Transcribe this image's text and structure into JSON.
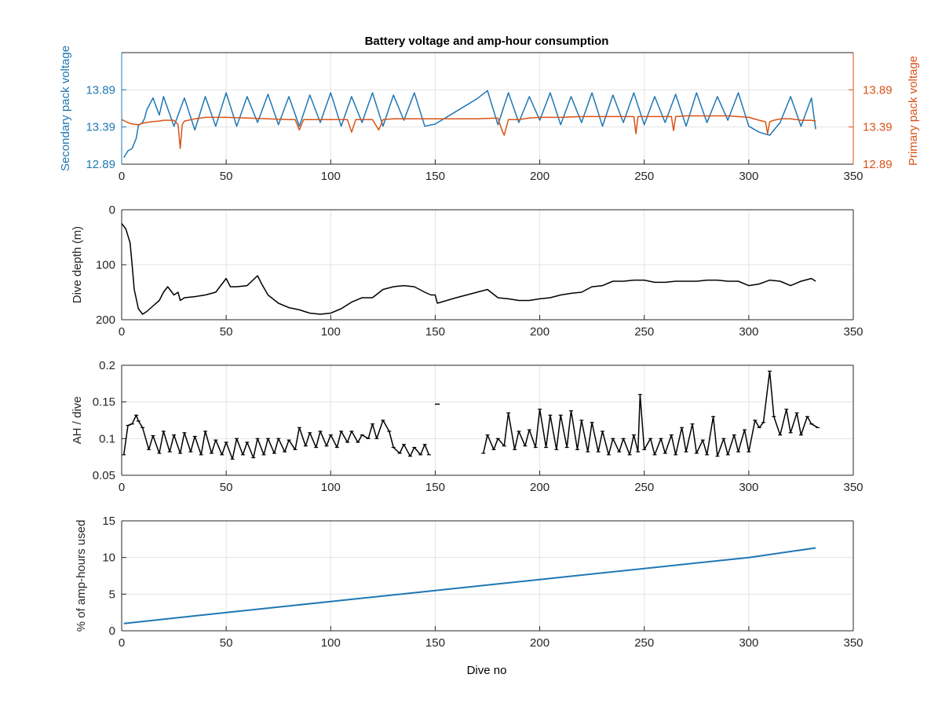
{
  "figure": {
    "title": "Battery voltage and amp-hour consumption",
    "xlabel": "Dive no"
  },
  "colors": {
    "secondary": "#1f77b4",
    "primary": "#d95319",
    "black": "#000000",
    "grid": "#e3e3e3"
  },
  "chart_data": [
    {
      "type": "line",
      "title": "Battery voltage and amp-hour consumption",
      "xlabel": "",
      "ylabel": "Secondary pack voltage",
      "ylabel_right": "Primary pack voltage",
      "xlim": [
        0,
        350
      ],
      "ylim": [
        12.89,
        14.39
      ],
      "ylim_right": [
        12.89,
        14.39
      ],
      "xticks": [
        "0",
        "50",
        "100",
        "150",
        "200",
        "250",
        "300",
        "350"
      ],
      "yticks": [
        "12.89",
        "13.39",
        "13.89"
      ],
      "yticks_right": [
        "12.89",
        "13.39",
        "13.89"
      ],
      "grid": true,
      "series": [
        {
          "axis": "left",
          "color": "#1f77b4",
          "x": [
            1,
            3,
            5,
            7,
            8,
            10,
            11,
            12,
            15,
            18,
            20,
            25,
            30,
            35,
            40,
            45,
            50,
            55,
            60,
            65,
            70,
            75,
            80,
            85,
            90,
            95,
            100,
            105,
            110,
            115,
            120,
            125,
            130,
            135,
            140,
            145,
            150,
            160,
            170,
            175,
            180,
            185,
            190,
            195,
            200,
            205,
            210,
            215,
            220,
            225,
            230,
            235,
            240,
            245,
            250,
            255,
            260,
            265,
            270,
            275,
            280,
            285,
            290,
            295,
            300,
            305,
            310,
            315,
            320,
            325,
            330,
            332
          ],
          "y": [
            12.98,
            13.07,
            13.1,
            13.24,
            13.41,
            13.45,
            13.51,
            13.62,
            13.78,
            13.55,
            13.8,
            13.4,
            13.78,
            13.35,
            13.8,
            13.4,
            13.85,
            13.4,
            13.8,
            13.45,
            13.83,
            13.42,
            13.8,
            13.4,
            13.82,
            13.45,
            13.85,
            13.4,
            13.8,
            13.45,
            13.85,
            13.4,
            13.82,
            13.48,
            13.85,
            13.4,
            13.43,
            13.6,
            13.77,
            13.88,
            13.42,
            13.85,
            13.45,
            13.8,
            13.48,
            13.85,
            13.42,
            13.8,
            13.45,
            13.85,
            13.4,
            13.82,
            13.45,
            13.85,
            13.42,
            13.8,
            13.45,
            13.83,
            13.4,
            13.85,
            13.45,
            13.8,
            13.48,
            13.85,
            13.4,
            13.32,
            13.28,
            13.45,
            13.8,
            13.4,
            13.78,
            13.36
          ]
        },
        {
          "axis": "right",
          "color": "#d95319",
          "x": [
            0,
            3,
            5,
            8,
            10,
            14,
            18,
            20,
            25,
            27,
            28,
            29,
            30,
            35,
            40,
            45,
            50,
            60,
            70,
            80,
            83,
            85,
            87,
            90,
            100,
            108,
            110,
            112,
            120,
            123,
            125,
            130,
            140,
            150,
            160,
            170,
            180,
            182,
            183,
            185,
            190,
            195,
            200,
            210,
            220,
            230,
            240,
            245,
            246,
            247,
            248,
            250,
            260,
            263,
            264,
            265,
            270,
            280,
            290,
            300,
            305,
            308,
            309,
            310,
            312,
            315,
            320,
            325,
            330,
            332
          ],
          "y": [
            13.49,
            13.45,
            13.43,
            13.42,
            13.44,
            13.46,
            13.47,
            13.48,
            13.48,
            13.42,
            13.1,
            13.42,
            13.47,
            13.5,
            13.52,
            13.52,
            13.52,
            13.51,
            13.5,
            13.49,
            13.49,
            13.35,
            13.49,
            13.49,
            13.49,
            13.49,
            13.32,
            13.49,
            13.49,
            13.35,
            13.49,
            13.5,
            13.5,
            13.5,
            13.5,
            13.5,
            13.51,
            13.34,
            13.28,
            13.49,
            13.49,
            13.51,
            13.52,
            13.52,
            13.53,
            13.53,
            13.53,
            13.53,
            13.3,
            13.53,
            13.53,
            13.53,
            13.53,
            13.53,
            13.34,
            13.53,
            13.54,
            13.54,
            13.54,
            13.52,
            13.48,
            13.46,
            13.3,
            13.46,
            13.48,
            13.5,
            13.5,
            13.48,
            13.48,
            13.47
          ]
        }
      ]
    },
    {
      "type": "line",
      "ylabel": "Dive depth (m)",
      "y_reversed": true,
      "xlim": [
        0,
        350
      ],
      "ylim": [
        0,
        200
      ],
      "xticks": [
        "0",
        "50",
        "100",
        "150",
        "200",
        "250",
        "300",
        "350"
      ],
      "yticks": [
        "0",
        "100",
        "200"
      ],
      "grid": true,
      "series": [
        {
          "color": "#000000",
          "x": [
            0,
            2,
            4,
            5,
            6,
            8,
            10,
            12,
            15,
            18,
            20,
            22,
            25,
            27,
            28,
            30,
            35,
            40,
            45,
            50,
            52,
            55,
            60,
            65,
            67,
            70,
            75,
            80,
            85,
            90,
            95,
            100,
            105,
            110,
            115,
            120,
            125,
            130,
            135,
            140,
            145,
            148,
            150,
            151,
            160,
            170,
            175,
            180,
            185,
            190,
            195,
            200,
            205,
            210,
            215,
            220,
            225,
            230,
            235,
            240,
            245,
            250,
            255,
            260,
            265,
            270,
            275,
            280,
            285,
            290,
            295,
            300,
            305,
            310,
            315,
            320,
            325,
            330,
            332
          ],
          "y": [
            25,
            35,
            60,
            100,
            145,
            180,
            190,
            185,
            175,
            165,
            150,
            140,
            155,
            150,
            165,
            160,
            158,
            155,
            150,
            125,
            140,
            140,
            138,
            120,
            135,
            155,
            170,
            178,
            182,
            188,
            190,
            188,
            180,
            168,
            160,
            160,
            145,
            140,
            138,
            140,
            150,
            155,
            155,
            170,
            160,
            150,
            145,
            160,
            162,
            165,
            165,
            162,
            160,
            155,
            152,
            150,
            140,
            138,
            130,
            130,
            128,
            128,
            132,
            132,
            130,
            130,
            130,
            128,
            128,
            130,
            130,
            138,
            135,
            128,
            130,
            138,
            130,
            125,
            130
          ]
        }
      ]
    },
    {
      "type": "line",
      "ylabel": "AH / dive",
      "xlim": [
        0,
        350
      ],
      "ylim": [
        0.05,
        0.2
      ],
      "xticks": [
        "0",
        "50",
        "100",
        "150",
        "200",
        "250",
        "300",
        "350"
      ],
      "yticks": [
        "0.05",
        "0.1",
        "0.15",
        "0.2"
      ],
      "grid": true,
      "series": [
        {
          "color": "#000000",
          "x": [
            1,
            3,
            5,
            7,
            8,
            10,
            13,
            15,
            18,
            20,
            23,
            25,
            28,
            30,
            33,
            35,
            38,
            40,
            43,
            45,
            48,
            50,
            53,
            55,
            58,
            60,
            63,
            65,
            68,
            70,
            73,
            75,
            78,
            80,
            83,
            85,
            88,
            90,
            93,
            95,
            98,
            100,
            103,
            105,
            108,
            110,
            113,
            115,
            118,
            120,
            122,
            125,
            128,
            130,
            133,
            135,
            138,
            140,
            143,
            145,
            147
          ],
          "y": [
            0.078,
            0.118,
            0.12,
            0.132,
            0.124,
            0.115,
            0.085,
            0.104,
            0.08,
            0.11,
            0.082,
            0.105,
            0.08,
            0.108,
            0.082,
            0.103,
            0.078,
            0.11,
            0.08,
            0.098,
            0.078,
            0.095,
            0.072,
            0.1,
            0.078,
            0.095,
            0.074,
            0.1,
            0.078,
            0.1,
            0.08,
            0.1,
            0.082,
            0.098,
            0.085,
            0.115,
            0.09,
            0.108,
            0.088,
            0.11,
            0.09,
            0.105,
            0.088,
            0.11,
            0.095,
            0.11,
            0.095,
            0.105,
            0.1,
            0.12,
            0.1,
            0.125,
            0.11,
            0.088,
            0.08,
            0.092,
            0.076,
            0.088,
            0.078,
            0.092,
            0.078
          ]
        },
        {
          "color": "#000000",
          "x": [
            151
          ],
          "y": [
            0.147
          ]
        },
        {
          "color": "#000000",
          "x": [
            173,
            175,
            178,
            180,
            183,
            185,
            188,
            190,
            193,
            195,
            198,
            200,
            203,
            205,
            208,
            210,
            213,
            215,
            218,
            220,
            223,
            225,
            228,
            230,
            233,
            235,
            238,
            240,
            243,
            245,
            247,
            248,
            250,
            253,
            255,
            258,
            260,
            263,
            265,
            268,
            270,
            273,
            275,
            278,
            280,
            283,
            285,
            288,
            290,
            293,
            295,
            298,
            300,
            303,
            305,
            307,
            310,
            312,
            315,
            318,
            320,
            323,
            325,
            328,
            330,
            333
          ],
          "y": [
            0.08,
            0.105,
            0.085,
            0.1,
            0.09,
            0.135,
            0.085,
            0.11,
            0.09,
            0.112,
            0.088,
            0.14,
            0.088,
            0.132,
            0.085,
            0.132,
            0.088,
            0.138,
            0.085,
            0.125,
            0.082,
            0.122,
            0.082,
            0.11,
            0.078,
            0.1,
            0.082,
            0.1,
            0.078,
            0.105,
            0.082,
            0.16,
            0.085,
            0.1,
            0.078,
            0.1,
            0.08,
            0.105,
            0.078,
            0.115,
            0.082,
            0.12,
            0.08,
            0.098,
            0.078,
            0.13,
            0.076,
            0.1,
            0.078,
            0.105,
            0.082,
            0.112,
            0.082,
            0.125,
            0.115,
            0.122,
            0.192,
            0.13,
            0.105,
            0.14,
            0.108,
            0.135,
            0.105,
            0.13,
            0.12,
            0.115
          ]
        }
      ]
    },
    {
      "type": "line",
      "ylabel": "% of amp-hours used",
      "xlabel": "Dive no",
      "xlim": [
        0,
        350
      ],
      "ylim": [
        0,
        15
      ],
      "xticks": [
        "0",
        "50",
        "100",
        "150",
        "200",
        "250",
        "300",
        "350"
      ],
      "yticks": [
        "0",
        "5",
        "10",
        "15"
      ],
      "grid": true,
      "series": [
        {
          "color": "#1f77b4",
          "x": [
            1,
            50,
            100,
            150,
            200,
            250,
            300,
            332
          ],
          "y": [
            1.0,
            2.5,
            4.0,
            5.5,
            7.0,
            8.5,
            10.0,
            11.3
          ]
        }
      ]
    }
  ]
}
